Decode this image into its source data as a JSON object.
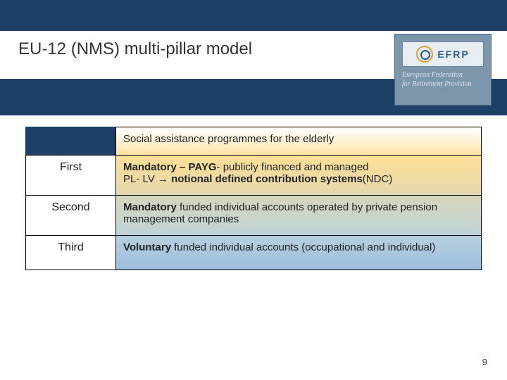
{
  "title": "EU-12 (NMS) multi-pillar model",
  "logo": {
    "acronym": "EFRP",
    "sub_line1": "European Federation",
    "sub_line2": "for Retirement Provision"
  },
  "rows": [
    {
      "pillar": "",
      "desc_plain": "Social assistance programmes for the elderly"
    },
    {
      "pillar": "First",
      "line1_b1": "Mandatory – PAYG",
      "line1_rest": "- publicly financed and managed",
      "line2_pre": "PL- LV → ",
      "line2_b": "notional defined contribution systems",
      "line2_post": "(NDC)"
    },
    {
      "pillar": "Second",
      "b": "Mandatory",
      "rest": " funded individual accounts operated by private pension management companies"
    },
    {
      "pillar": "Third",
      "b": "Voluntary",
      "rest": " funded individual accounts (occupational and individual)"
    }
  ],
  "page_number": "9",
  "colors": {
    "brand_bar": "#1c4068",
    "logo_bg": "#7c96ab"
  }
}
